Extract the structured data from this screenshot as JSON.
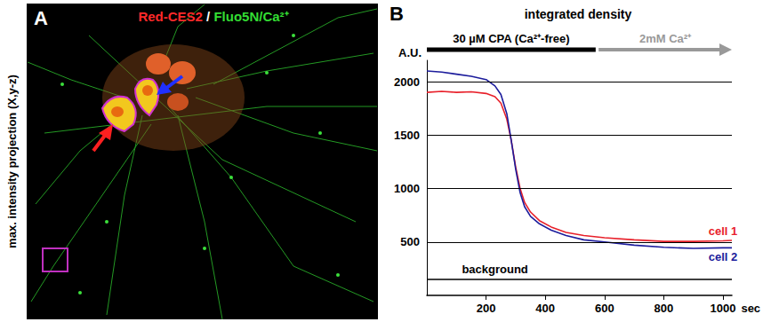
{
  "image_panel": {
    "panel_label": "A",
    "title": [
      {
        "text": "Red-CES2",
        "color": "#ff2a2a"
      },
      {
        "text": " / ",
        "color": "#ffffff"
      },
      {
        "text": "Fluo5N/Ca²⁺",
        "color": "#33dd33"
      }
    ],
    "side_label": "max. intensity projection (X,y-z)"
  },
  "chart_data": {
    "type": "line",
    "panel_label": "B",
    "title": "integrated density",
    "x_label": "sec",
    "y_label": "A.U.",
    "x": [
      0,
      50,
      100,
      150,
      200,
      230,
      250,
      270,
      285,
      300,
      315,
      330,
      350,
      380,
      420,
      470,
      530,
      600,
      700,
      800,
      900,
      1000,
      1030
    ],
    "series": [
      {
        "name": "cell 1",
        "color": "#e8202a",
        "values": [
          1900,
          1910,
          1900,
          1905,
          1890,
          1860,
          1800,
          1650,
          1450,
          1200,
          1000,
          870,
          780,
          700,
          640,
          590,
          560,
          540,
          520,
          505,
          505,
          510,
          515
        ]
      },
      {
        "name": "cell 2",
        "color": "#1c1c9c",
        "values": [
          2100,
          2090,
          2070,
          2050,
          2020,
          1960,
          1880,
          1700,
          1450,
          1180,
          960,
          830,
          740,
          670,
          610,
          560,
          520,
          500,
          470,
          450,
          440,
          445,
          445
        ]
      },
      {
        "name": "background",
        "color": "#000000",
        "values": [
          150,
          150,
          150,
          150,
          150,
          150,
          150,
          150,
          150,
          150,
          150,
          150,
          150,
          150,
          150,
          150,
          150,
          150,
          150,
          150,
          150,
          150,
          150
        ]
      }
    ],
    "protocol": [
      {
        "label": "30 µM CPA (Ca²⁺-free)",
        "start": 0,
        "end": 570,
        "color": "#000000",
        "shape": "bar"
      },
      {
        "label": "2mM Ca²⁺",
        "start": 580,
        "end": 1030,
        "color": "#999999",
        "shape": "arrow"
      }
    ],
    "xlim": [
      0,
      1030
    ],
    "xticks": [
      200,
      400,
      600,
      800,
      1000
    ],
    "ylim": [
      0,
      2200
    ],
    "yticks": [
      500,
      1000,
      1500,
      2000
    ],
    "grid": true
  }
}
